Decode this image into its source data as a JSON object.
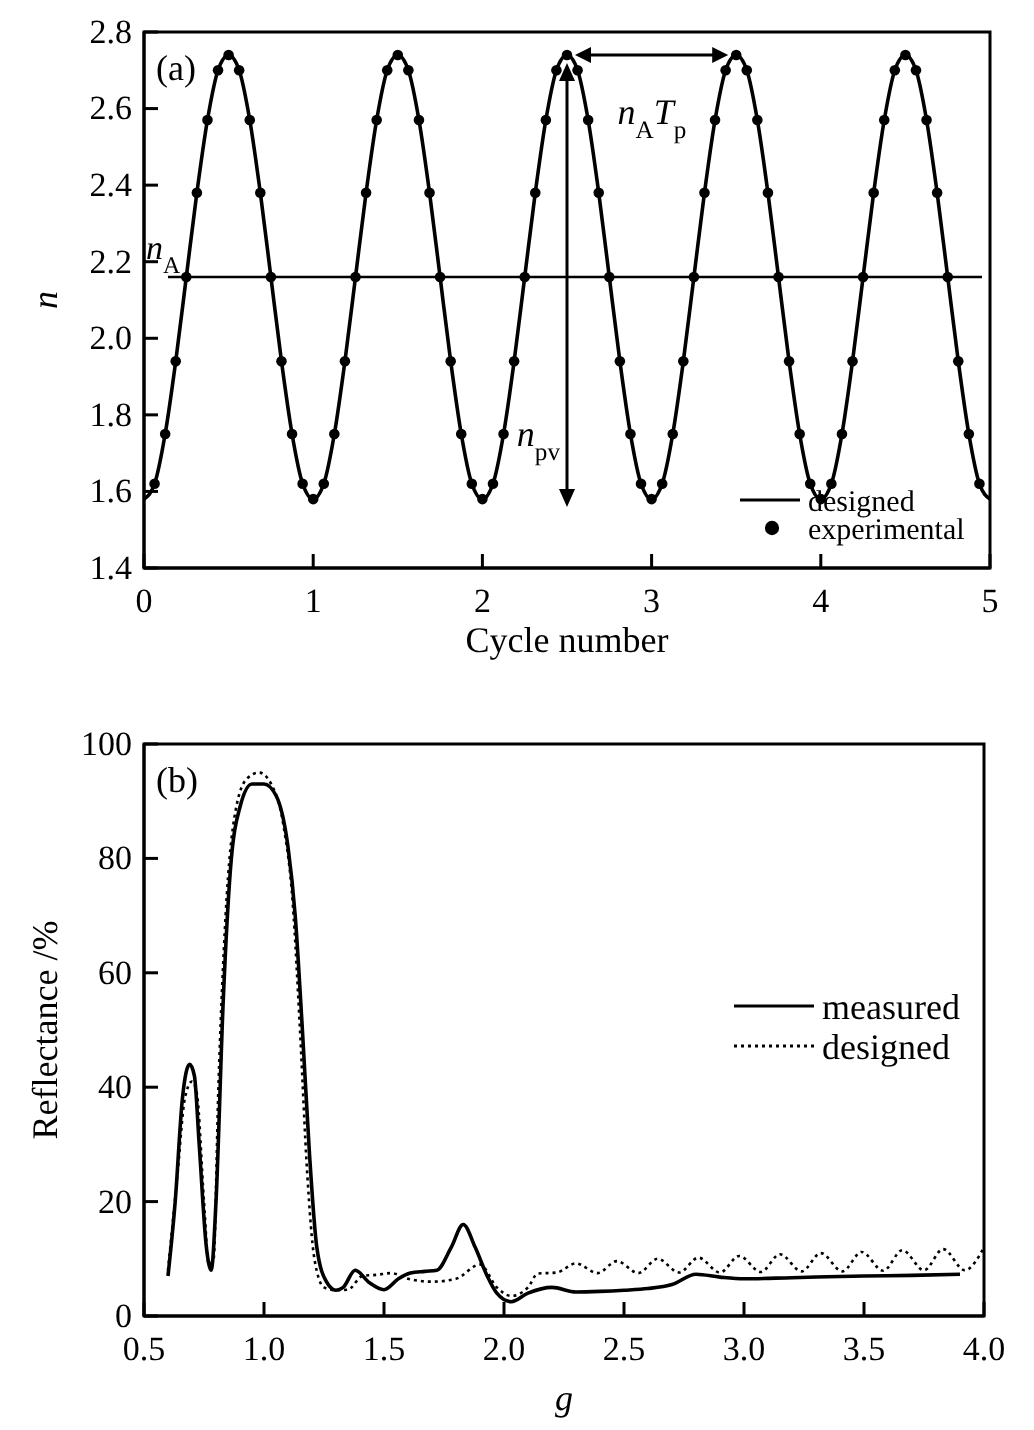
{
  "chart_data": [
    {
      "type": "line",
      "xlabel": "Cycle number",
      "ylabel": "n",
      "xlim": [
        0,
        5
      ],
      "ylim": [
        1.4,
        2.8
      ],
      "xticks": [
        0,
        1,
        2,
        3,
        4,
        5
      ],
      "yticks": [
        1.4,
        1.6,
        1.8,
        {
          "value": 2,
          "label": "2.0"
        },
        2.2,
        2.4,
        2.6,
        2.8
      ],
      "grid": false,
      "legend": "bottom right",
      "x": [
        0,
        0.0625,
        0.125,
        0.1875,
        0.25,
        0.3125,
        0.375,
        0.4375,
        0.5,
        0.5625,
        0.625,
        0.6875,
        0.75,
        0.8125,
        0.875,
        0.9375,
        1,
        1.0625,
        1.125,
        1.1875,
        1.25,
        1.3125,
        1.375,
        1.4375,
        1.5,
        1.5625,
        1.625,
        1.6875,
        1.75,
        1.8125,
        1.875,
        1.9375,
        2,
        2.0625,
        2.125,
        2.1875,
        2.25,
        2.3125,
        2.375,
        2.4375,
        2.5,
        2.5625,
        2.625,
        2.6875,
        2.75,
        2.8125,
        2.875,
        2.9375,
        3,
        3.0625,
        3.125,
        3.1875,
        3.25,
        3.3125,
        3.375,
        3.4375,
        3.5,
        3.5625,
        3.625,
        3.6875,
        3.75,
        3.8125,
        3.875,
        3.9375,
        4,
        4.0625,
        4.125,
        4.1875,
        4.25,
        4.3125,
        4.375,
        4.4375,
        4.5,
        4.5625,
        4.625,
        4.6875,
        4.75,
        4.8125,
        4.875,
        4.9375,
        5
      ],
      "series": [
        {
          "name": "designed",
          "color": "#000000",
          "marker": "none",
          "line_style": "solid",
          "values": [
            1.58,
            1.62,
            1.75,
            1.94,
            2.16,
            2.38,
            2.57,
            2.7,
            2.74,
            2.7,
            2.57,
            2.38,
            2.16,
            1.94,
            1.75,
            1.62,
            1.58,
            1.62,
            1.75,
            1.94,
            2.16,
            2.38,
            2.57,
            2.7,
            2.74,
            2.7,
            2.57,
            2.38,
            2.16,
            1.94,
            1.75,
            1.62,
            1.58,
            1.62,
            1.75,
            1.94,
            2.16,
            2.38,
            2.57,
            2.7,
            2.74,
            2.7,
            2.57,
            2.38,
            2.16,
            1.94,
            1.75,
            1.62,
            1.58,
            1.62,
            1.75,
            1.94,
            2.16,
            2.38,
            2.57,
            2.7,
            2.74,
            2.7,
            2.57,
            2.38,
            2.16,
            1.94,
            1.75,
            1.62,
            1.58,
            1.62,
            1.75,
            1.94,
            2.16,
            2.38,
            2.57,
            2.7,
            2.74,
            2.7,
            2.57,
            2.38,
            2.16,
            1.94,
            1.75,
            1.62,
            1.58
          ]
        },
        {
          "name": "experimental",
          "type": "scatter",
          "color": "#000000",
          "marker": "circle",
          "values": [
            null,
            1.62,
            1.75,
            1.94,
            2.16,
            2.38,
            2.57,
            2.7,
            2.74,
            2.7,
            2.57,
            2.38,
            2.16,
            1.94,
            1.75,
            1.62,
            1.58,
            1.62,
            1.75,
            1.94,
            2.16,
            2.38,
            2.57,
            2.7,
            2.74,
            2.7,
            2.57,
            2.38,
            2.16,
            1.94,
            1.75,
            1.62,
            1.58,
            1.62,
            1.75,
            1.94,
            2.16,
            2.38,
            2.57,
            2.7,
            2.74,
            2.7,
            2.57,
            2.38,
            2.16,
            1.94,
            1.75,
            1.62,
            1.58,
            1.62,
            1.75,
            1.94,
            2.16,
            2.38,
            2.57,
            2.7,
            2.74,
            2.7,
            2.57,
            2.38,
            2.16,
            1.94,
            1.75,
            1.62,
            1.58,
            1.62,
            1.75,
            1.94,
            2.16,
            2.38,
            2.57,
            2.7,
            2.74,
            2.7,
            2.57,
            2.38,
            2.16,
            1.94,
            1.75,
            1.62,
            null
          ]
        }
      ],
      "ref_lines": [
        {
          "axis": "y",
          "value": 2.16,
          "label": "n$_{A}$"
        }
      ],
      "annotations": [
        "(a)",
        "n$_{A}$T$_{p}$",
        "n$_{pv}$"
      ]
    },
    {
      "type": "line",
      "xlabel": "g",
      "ylabel": "Reflectance /%",
      "xlim": [
        0.5,
        4.0
      ],
      "ylim": [
        0,
        100
      ],
      "xticks": [
        {
          "value": 0.5,
          "label": "0.5"
        },
        {
          "value": 1,
          "label": "1.0"
        },
        {
          "value": 1.5,
          "label": "1.5"
        },
        {
          "value": 2,
          "label": "2.0"
        },
        {
          "value": 2.5,
          "label": "2.5"
        },
        {
          "value": 3,
          "label": "3.0"
        },
        {
          "value": 3.5,
          "label": "3.5"
        },
        {
          "value": 4,
          "label": "4.0"
        }
      ],
      "yticks": [
        0,
        20,
        40,
        60,
        80,
        100
      ],
      "grid": false,
      "legend": "right",
      "series": [
        {
          "name": "measured",
          "color": "#000000",
          "line_style": "solid",
          "x": [
            0.6,
            0.63,
            0.66,
            0.69,
            0.71,
            0.73,
            0.76,
            0.78,
            0.8,
            0.83,
            0.86,
            0.9,
            0.95,
            1.0,
            1.05,
            1.1,
            1.13,
            1.16,
            1.19,
            1.22,
            1.26,
            1.3,
            1.33,
            1.38,
            1.44,
            1.5,
            1.56,
            1.61,
            1.67,
            1.72,
            1.78,
            1.83,
            1.88,
            1.93,
            1.97,
            2.03,
            2.1,
            2.2,
            2.3,
            2.4,
            2.5,
            2.6,
            2.7,
            2.8,
            2.9,
            3.0,
            3.2,
            3.5,
            3.7,
            3.9
          ],
          "values": [
            7,
            20,
            38,
            44,
            42,
            30,
            12,
            8,
            20,
            55,
            78,
            89,
            93,
            93,
            91,
            82,
            70,
            50,
            28,
            12,
            6,
            4.5,
            5,
            8,
            5.8,
            4.6,
            6.5,
            7.5,
            7.8,
            8,
            12,
            16,
            12,
            7,
            4,
            2.5,
            4,
            5,
            4.2,
            4.3,
            4.5,
            4.8,
            5.5,
            7.3,
            6.8,
            6.5,
            6.7,
            7,
            7.1,
            7.3
          ]
        },
        {
          "name": "designed",
          "color": "#000000",
          "line_style": "dotted",
          "x": [
            0.6,
            0.64,
            0.67,
            0.7,
            0.72,
            0.75,
            0.77,
            0.79,
            0.81,
            0.84,
            0.88,
            0.93,
            0.98,
            1.03,
            1.08,
            1.12,
            1.15,
            1.18,
            1.21,
            1.25,
            1.3,
            1.35,
            1.41,
            1.47,
            1.53,
            1.6,
            1.7,
            1.8,
            1.9,
            1.97,
            2.03,
            2.1,
            2.14,
            2.22,
            2.3,
            2.39,
            2.47,
            2.56,
            2.64,
            2.73,
            2.81,
            2.9,
            2.98,
            3.07,
            3.15,
            3.24,
            3.32,
            3.41,
            3.49,
            3.58,
            3.66,
            3.75,
            3.83,
            3.92,
            4.0
          ],
          "values": [
            8,
            25,
            38,
            41,
            39,
            20,
            9,
            10,
            40,
            70,
            88,
            94,
            95,
            93,
            86,
            72,
            50,
            25,
            10,
            5,
            4.5,
            4.6,
            7,
            7.2,
            7.5,
            6.5,
            6,
            6.5,
            9,
            5,
            3.5,
            5,
            7.4,
            7.6,
            9.2,
            7.5,
            9.6,
            7.5,
            10,
            7.6,
            10.2,
            7.6,
            10.5,
            7.7,
            10.8,
            7.8,
            11,
            7.8,
            11.2,
            7.9,
            11.5,
            8,
            11.7,
            8,
            12
          ]
        }
      ],
      "annotations": [
        "(b)"
      ]
    }
  ]
}
